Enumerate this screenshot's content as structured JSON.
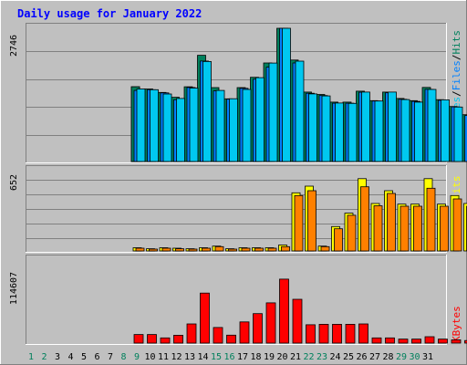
{
  "chart_data": [
    {
      "type": "bar",
      "title": "Daily usage for January 2022",
      "categories": [
        "1",
        "2",
        "3",
        "4",
        "5",
        "6",
        "7",
        "8",
        "9",
        "10",
        "11",
        "12",
        "13",
        "14",
        "15",
        "16",
        "17",
        "18",
        "19",
        "20",
        "21",
        "22",
        "23",
        "24",
        "25",
        "26",
        "27",
        "28",
        "29",
        "30",
        "31"
      ],
      "weekend_days": [
        1,
        2,
        8,
        9,
        15,
        16,
        22,
        23,
        29,
        30
      ],
      "ylabel_parts": [
        "Pages",
        "/",
        "Files",
        "/",
        "Hits"
      ],
      "ymax_label": "2746",
      "ylim": [
        0,
        2746
      ],
      "series": [
        {
          "name": "Hits",
          "color": "#00805c",
          "values": [
            0,
            0,
            0,
            0,
            1540,
            0,
            0,
            0,
            0,
            0,
            0,
            0,
            0,
            0,
            0,
            0,
            0,
            0,
            0,
            0,
            0,
            0,
            0,
            0,
            0,
            0,
            0,
            0,
            0,
            0,
            0
          ]
        },
        {
          "name": "Hits",
          "color": "#00805c",
          "values": [
            0,
            0,
            0,
            0,
            1540,
            1495,
            1423,
            1325,
            1540,
            2190,
            1523,
            1292,
            1523,
            1736,
            2032,
            2746,
            2092,
            1431,
            1383,
            1225,
            1225,
            1451,
            1255,
            1431,
            1299,
            1255,
            1527,
            1276,
            1135,
            964,
            164
          ]
        },
        {
          "name": "Files",
          "color": "#0080ff",
          "values": [
            0,
            0,
            0,
            0,
            1466,
            1481,
            1415,
            1274,
            1525,
            2071,
            1455,
            1284,
            1508,
            1696,
            1944,
            2746,
            2032,
            1406,
            1359,
            1201,
            1201,
            1427,
            1247,
            1416,
            1283,
            1239,
            1487,
            1260,
            1127,
            948,
            148
          ]
        },
        {
          "name": "Pages",
          "color": "#00c8f0",
          "values": [
            0,
            0,
            0,
            0,
            1496,
            1481,
            1391,
            1299,
            1515,
            2062,
            1466,
            1294,
            1486,
            1729,
            2029,
            2746,
            2068,
            1393,
            1353,
            1205,
            1199,
            1431,
            1247,
            1431,
            1278,
            1224,
            1486,
            1271,
            1123,
            935,
            120
          ]
        }
      ]
    },
    {
      "type": "bar",
      "categories": [
        "1",
        "2",
        "3",
        "4",
        "5",
        "6",
        "7",
        "8",
        "9",
        "10",
        "11",
        "12",
        "13",
        "14",
        "15",
        "16",
        "17",
        "18",
        "19",
        "20",
        "21",
        "22",
        "23",
        "24",
        "25",
        "26",
        "27",
        "28",
        "29",
        "30",
        "31"
      ],
      "ylabel_parts": [
        "Sites",
        "/",
        "Visits"
      ],
      "ymax_label": "652",
      "ylim": [
        0,
        652
      ],
      "series": [
        {
          "name": "Visits",
          "color": "#ffff00",
          "values": [
            0,
            0,
            0,
            0,
            26,
            18,
            26,
            22,
            18,
            26,
            39,
            18,
            26,
            26,
            26,
            48,
            472,
            526,
            39,
            198,
            307,
            587,
            385,
            489,
            380,
            380,
            587,
            380,
            450,
            385,
            48
          ]
        },
        {
          "name": "Sites",
          "color": "#ff8000",
          "values": [
            0,
            0,
            0,
            0,
            22,
            15,
            22,
            18,
            15,
            22,
            35,
            15,
            22,
            22,
            22,
            35,
            450,
            489,
            35,
            180,
            290,
            521,
            367,
            467,
            363,
            363,
            509,
            363,
            422,
            363,
            48
          ]
        }
      ]
    },
    {
      "type": "bar",
      "categories": [
        "1",
        "2",
        "3",
        "4",
        "5",
        "6",
        "7",
        "8",
        "9",
        "10",
        "11",
        "12",
        "13",
        "14",
        "15",
        "16",
        "17",
        "18",
        "19",
        "20",
        "21",
        "22",
        "23",
        "24",
        "25",
        "26",
        "27",
        "28",
        "29",
        "30",
        "31"
      ],
      "ylabel_parts": [
        "KBytes"
      ],
      "ymax_label": "114607",
      "ylim": [
        0,
        114607
      ],
      "series": [
        {
          "name": "KBytes",
          "color": "#ff0000",
          "values": [
            0,
            0,
            0,
            0,
            11800,
            11800,
            7200,
            10800,
            26500,
            69000,
            21500,
            11000,
            29200,
            40700,
            55600,
            88300,
            60500,
            25300,
            25900,
            25900,
            25900,
            26500,
            7200,
            7200,
            5600,
            5600,
            8800,
            5600,
            4500,
            3500,
            3400
          ]
        }
      ]
    }
  ],
  "colors": {
    "title": "#0000ff",
    "page_bg": "#c0c0c0",
    "plot_bg": "#c0c0c0",
    "grid": "#808080",
    "weekday_label": "#000000",
    "weekend_label": "#00805c",
    "slash_label": "#000000",
    "pages_label": "#00c8f0",
    "files_label": "#0080ff",
    "hits_label": "#00805c",
    "sites_label": "#ff8000",
    "visits_label": "#ffff00",
    "kbytes_label": "#ff0000"
  }
}
